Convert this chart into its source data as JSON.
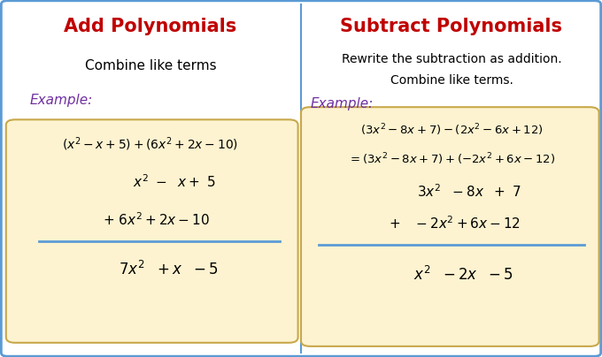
{
  "fig_width": 6.8,
  "fig_height": 4.04,
  "dpi": 100,
  "bg_color": "#ffffff",
  "border_color": "#5b9bd5",
  "divider_color": "#5b9bd5",
  "box_bg_color": "#fdf3d0",
  "box_border_color": "#c8a84b",
  "title_color": "#c00000",
  "example_color": "#7030a0",
  "text_color": "#000000",
  "math_color": "#000000",
  "left_title": "Add Polynomials",
  "right_title": "Subtract Polynomials",
  "left_subtitle": "Combine like terms",
  "right_subtitle1": "Rewrite the subtraction as addition.",
  "right_subtitle2": "Combine like terms.",
  "example_label": "Example:"
}
